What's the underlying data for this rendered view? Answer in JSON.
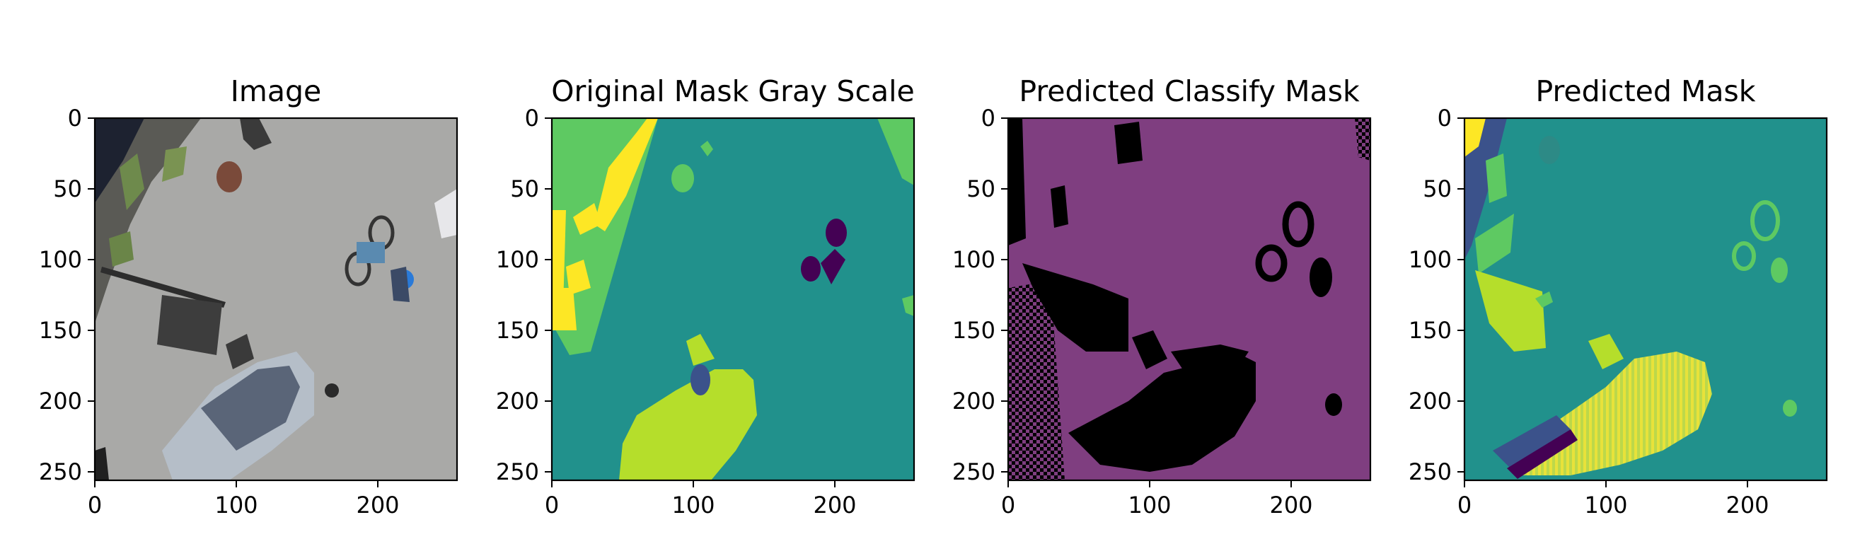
{
  "chart_data": [
    {
      "type": "heatmap",
      "title": "Image",
      "content": "photo",
      "x_ticks": [
        "0",
        "100",
        "200"
      ],
      "y_ticks": [
        "0",
        "50",
        "100",
        "150",
        "200",
        "250"
      ],
      "xlim": [
        0,
        256
      ],
      "ylim": [
        256,
        0
      ]
    },
    {
      "type": "heatmap",
      "title": "Original Mask Gray Scale",
      "content": "mask",
      "colormap": "viridis",
      "x_ticks": [
        "0",
        "100",
        "200"
      ],
      "y_ticks": [
        "0",
        "50",
        "100",
        "150",
        "200",
        "250"
      ],
      "xlim": [
        0,
        256
      ],
      "ylim": [
        256,
        0
      ]
    },
    {
      "type": "heatmap",
      "title": "Predicted Classify Mask",
      "content": "classify",
      "colors": {
        "background": "#7f3e80",
        "foreground": "#000000"
      },
      "x_ticks": [
        "0",
        "100",
        "200"
      ],
      "y_ticks": [
        "0",
        "50",
        "100",
        "150",
        "200",
        "250"
      ],
      "xlim": [
        0,
        256
      ],
      "ylim": [
        256,
        0
      ]
    },
    {
      "type": "heatmap",
      "title": "Predicted Mask",
      "content": "predicted",
      "colormap": "viridis",
      "x_ticks": [
        "0",
        "100",
        "200"
      ],
      "y_ticks": [
        "0",
        "50",
        "100",
        "150",
        "200",
        "250"
      ],
      "xlim": [
        0,
        256
      ],
      "ylim": [
        256,
        0
      ]
    }
  ],
  "colors": {
    "viridis_purple": "#440154",
    "viridis_blue": "#3b528b",
    "viridis_teal": "#21918c",
    "viridis_green": "#5ec962",
    "viridis_lime": "#b5de2b",
    "viridis_yellow": "#fde725",
    "asphalt": "#a9a9a7"
  }
}
